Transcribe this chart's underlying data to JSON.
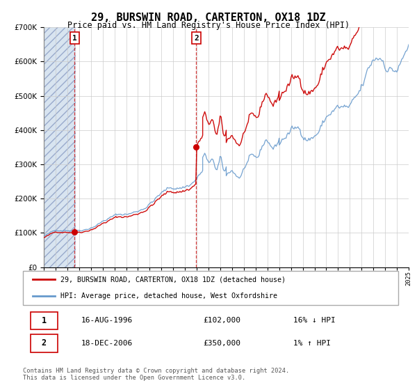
{
  "title": "29, BURSWIN ROAD, CARTERTON, OX18 1DZ",
  "subtitle": "Price paid vs. HM Land Registry's House Price Index (HPI)",
  "legend_line1": "29, BURSWIN ROAD, CARTERTON, OX18 1DZ (detached house)",
  "legend_line2": "HPI: Average price, detached house, West Oxfordshire",
  "annotation1_label": "1",
  "annotation1_date": "16-AUG-1996",
  "annotation1_price": "£102,000",
  "annotation1_hpi": "16% ↓ HPI",
  "annotation1_year": 1996.62,
  "annotation1_value": 102000,
  "annotation2_label": "2",
  "annotation2_date": "18-DEC-2006",
  "annotation2_price": "£350,000",
  "annotation2_hpi": "1% ↑ HPI",
  "annotation2_year": 2006.96,
  "annotation2_value": 350000,
  "price_color": "#cc0000",
  "hpi_color": "#6699cc",
  "plot_bg_color": "#ffffff",
  "hatched_bg_color": "#e8eeff",
  "ylim": [
    0,
    700000
  ],
  "xlim_start": 1994,
  "xlim_end": 2025,
  "footer_text": "Contains HM Land Registry data © Crown copyright and database right 2024.\nThis data is licensed under the Open Government Licence v3.0."
}
